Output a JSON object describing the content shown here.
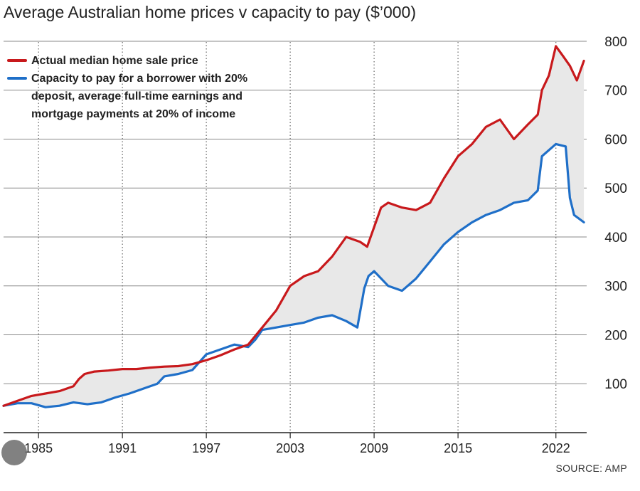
{
  "chart_data": {
    "type": "line",
    "title": "Average Australian home prices v capacity to pay ($’000)",
    "source": "SOURCE: AMP",
    "xlim": [
      1982.5,
      2024.2
    ],
    "ylim": [
      0,
      800
    ],
    "y_ticks": [
      100,
      200,
      300,
      400,
      500,
      600,
      700,
      800
    ],
    "x_ticks": [
      1985,
      1991,
      1997,
      2003,
      2009,
      2015,
      2022
    ],
    "x_tick_labels": [
      "1985",
      "1991",
      "1997",
      "2003",
      "2009",
      "2015",
      "2022"
    ],
    "grid": true,
    "legend_position": "top-left",
    "shaded_gap": true,
    "series": [
      {
        "name": "Actual median home sale price",
        "legend": [
          "Actual median home sale price"
        ],
        "color": "#c8191c",
        "points": [
          [
            1982.5,
            55
          ],
          [
            1983.5,
            65
          ],
          [
            1984.5,
            75
          ],
          [
            1985.5,
            80
          ],
          [
            1986.5,
            85
          ],
          [
            1987.5,
            95
          ],
          [
            1987.9,
            110
          ],
          [
            1988.3,
            120
          ],
          [
            1989,
            125
          ],
          [
            1990,
            127
          ],
          [
            1991,
            130
          ],
          [
            1992,
            130
          ],
          [
            1993,
            133
          ],
          [
            1994,
            135
          ],
          [
            1995,
            136
          ],
          [
            1996,
            140
          ],
          [
            1997,
            148
          ],
          [
            1998,
            158
          ],
          [
            1999,
            170
          ],
          [
            2000,
            180
          ],
          [
            2001,
            215
          ],
          [
            2002,
            250
          ],
          [
            2003,
            300
          ],
          [
            2004,
            320
          ],
          [
            2005,
            330
          ],
          [
            2006,
            360
          ],
          [
            2007,
            400
          ],
          [
            2008,
            390
          ],
          [
            2008.5,
            380
          ],
          [
            2009,
            420
          ],
          [
            2009.5,
            460
          ],
          [
            2010,
            470
          ],
          [
            2011,
            460
          ],
          [
            2012,
            455
          ],
          [
            2013,
            470
          ],
          [
            2014,
            520
          ],
          [
            2015,
            565
          ],
          [
            2016,
            590
          ],
          [
            2017,
            625
          ],
          [
            2018,
            640
          ],
          [
            2019,
            600
          ],
          [
            2020,
            630
          ],
          [
            2020.7,
            650
          ],
          [
            2021,
            700
          ],
          [
            2021.5,
            730
          ],
          [
            2022,
            790
          ],
          [
            2022.5,
            770
          ],
          [
            2023,
            750
          ],
          [
            2023.5,
            720
          ],
          [
            2024,
            760
          ]
        ]
      },
      {
        "name": "Capacity to pay for a borrower with 20% deposit, average full-time earnings and mortgage payments at 20% of income",
        "legend": [
          "Capacity to pay for a borrower with 20%",
          "deposit, average full-time earnings and",
          "mortgage payments at 20% of income"
        ],
        "color": "#1f6fc8",
        "points": [
          [
            1982.5,
            55
          ],
          [
            1983.5,
            60
          ],
          [
            1984.5,
            60
          ],
          [
            1985.5,
            52
          ],
          [
            1986.5,
            55
          ],
          [
            1987.5,
            62
          ],
          [
            1988.5,
            58
          ],
          [
            1989.5,
            62
          ],
          [
            1990.5,
            72
          ],
          [
            1991.5,
            80
          ],
          [
            1992.5,
            90
          ],
          [
            1993.5,
            100
          ],
          [
            1994,
            115
          ],
          [
            1995,
            120
          ],
          [
            1996,
            128
          ],
          [
            1997,
            160
          ],
          [
            1998,
            170
          ],
          [
            1999,
            180
          ],
          [
            2000,
            175
          ],
          [
            2000.5,
            190
          ],
          [
            2001,
            210
          ],
          [
            2002,
            215
          ],
          [
            2003,
            220
          ],
          [
            2004,
            225
          ],
          [
            2005,
            235
          ],
          [
            2006,
            240
          ],
          [
            2007,
            228
          ],
          [
            2007.8,
            215
          ],
          [
            2008.3,
            295
          ],
          [
            2008.6,
            320
          ],
          [
            2009,
            330
          ],
          [
            2010,
            300
          ],
          [
            2011,
            290
          ],
          [
            2012,
            315
          ],
          [
            2013,
            350
          ],
          [
            2014,
            385
          ],
          [
            2015,
            410
          ],
          [
            2016,
            430
          ],
          [
            2017,
            445
          ],
          [
            2018,
            455
          ],
          [
            2019,
            470
          ],
          [
            2020,
            475
          ],
          [
            2020.7,
            495
          ],
          [
            2021,
            565
          ],
          [
            2022,
            590
          ],
          [
            2022.7,
            585
          ],
          [
            2023,
            480
          ],
          [
            2023.3,
            445
          ],
          [
            2024,
            430
          ]
        ]
      }
    ]
  }
}
